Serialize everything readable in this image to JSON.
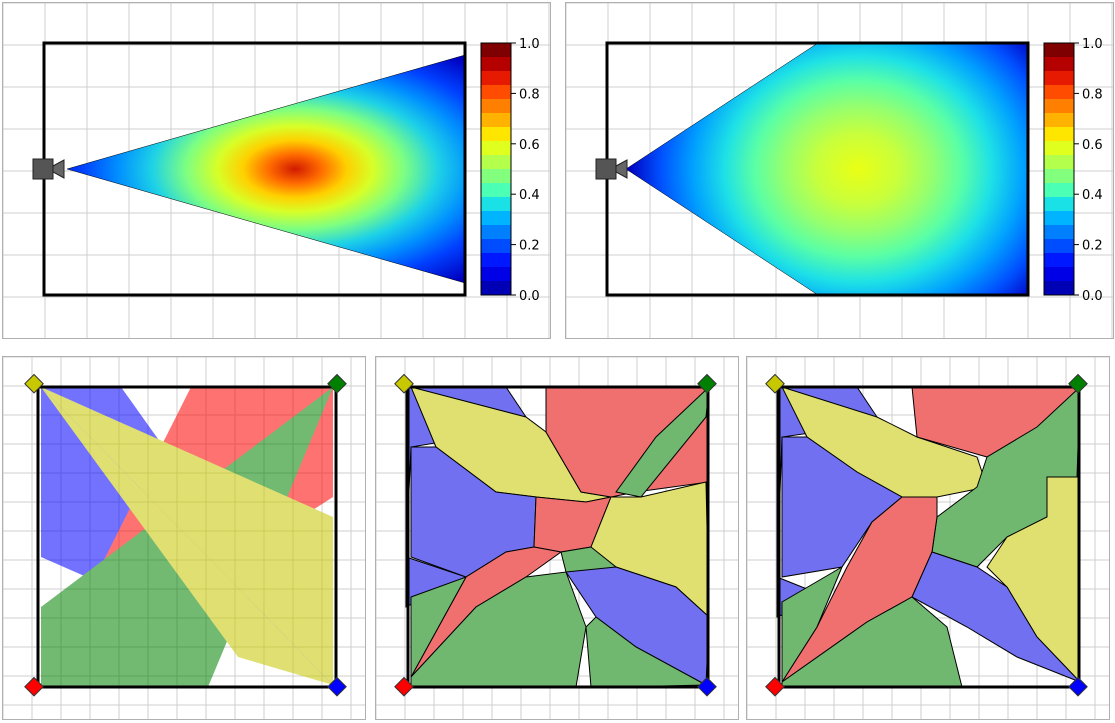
{
  "colorbar": {
    "ticks": [
      "1.0",
      "0.8",
      "0.6",
      "0.4",
      "0.2",
      "0.0"
    ],
    "colors": [
      "#7f0000",
      "#b50000",
      "#e61a00",
      "#ff4c00",
      "#ff8000",
      "#ffb300",
      "#ffe600",
      "#e1ff1e",
      "#b4ff4b",
      "#82ff7d",
      "#4bffb4",
      "#19e1e6",
      "#00b4ff",
      "#0080ff",
      "#004cff",
      "#0018ff",
      "#0000e6",
      "#0000b4"
    ]
  },
  "top_left": {
    "panel": "camera coverage heatmap, narrow field of view"
  },
  "top_right": {
    "panel": "camera coverage heatmap, wide field of view"
  },
  "cameras": {
    "yellow": "#c8c800",
    "green": "#008000",
    "red": "#ff0000",
    "blue": "#0000ff"
  },
  "region_fill": {
    "blue": "#7070f0",
    "red": "#f07070",
    "yellow": "#e0e070",
    "green": "#70b870"
  }
}
